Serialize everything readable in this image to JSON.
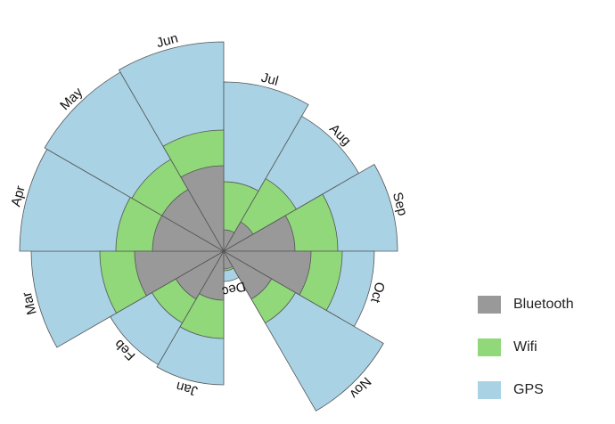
{
  "chart_data": {
    "type": "nightingale-rose",
    "categories": [
      "Jan",
      "Feb",
      "Mar",
      "Apr",
      "May",
      "Jun",
      "Jul",
      "Aug",
      "Sep",
      "Oct",
      "Nov",
      "Dec"
    ],
    "series": [
      {
        "name": "Bluetooth",
        "color": "#999999",
        "values": [
          55,
          62,
          100,
          80,
          80,
          96,
          24,
          38,
          80,
          98,
          62,
          20
        ]
      },
      {
        "name": "Wifi",
        "color": "#90d87a",
        "values": [
          98,
          93,
          139,
          121,
          119,
          136,
          78,
          94,
          128,
          133,
          93,
          22
        ]
      },
      {
        "name": "GPS",
        "color": "#a9d3e5",
        "values": [
          150,
          147,
          216,
          229,
          232,
          235,
          190,
          175,
          195,
          169,
          207,
          34
        ]
      }
    ],
    "legend_position": "bottom-right",
    "start_angle": "Jan at bottom-left, proceeding clockwise"
  }
}
